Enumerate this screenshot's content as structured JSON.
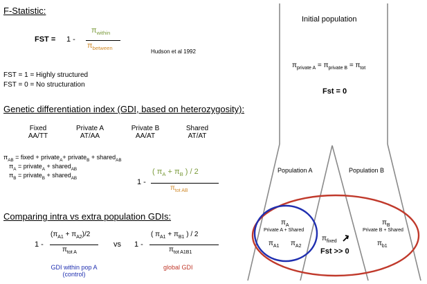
{
  "fstat": {
    "heading": "F-Statistic:",
    "fst_label": "FST =",
    "one_minus": "1 -",
    "pi": "π",
    "within": "within",
    "between": "between",
    "citation": "Hudson et al 1992",
    "line1": "FST = 1 = Highly structured",
    "line2": "FST = 0 = No structuration"
  },
  "gdi": {
    "heading": "Genetic differentiation index (GDI, based on heterozygosity):",
    "columns": [
      {
        "name": "Fixed",
        "genotype": "AA/TT"
      },
      {
        "name": "Private A",
        "genotype": "AT/AA"
      },
      {
        "name": "Private B",
        "genotype": "AA/AT"
      },
      {
        "name": "Shared",
        "genotype": "AT/AT"
      }
    ],
    "eq_ab": "= fixed + private",
    "eq_a": "= private",
    "eq_b": "= private",
    "plus_private": "+ private",
    "plus_shared": "+ shared",
    "sub_ab": "AB",
    "sub_a": "A",
    "sub_b": "B",
    "one_minus": "1 -",
    "numerator_open": "( π",
    "plus": "+  π",
    "close_half": ") / 2",
    "tot": "tot AB"
  },
  "compare": {
    "heading": "Comparing intra vs extra population GDIs:",
    "vs": "vs",
    "one_minus": "1 -",
    "left_num": "(π",
    "left_plus": "+ π",
    "left_close": ")/2",
    "left_den": "tot A",
    "right_num": "( π",
    "right_plus": "+  π",
    "right_close": ") / 2",
    "right_den": "tot A1B1",
    "sub_a1": "A1",
    "sub_a2": "A2",
    "sub_b1": "B1",
    "label_left_1": "GDI within pop A",
    "label_left_2": "(control)",
    "label_right": "global GDI"
  },
  "diagram": {
    "initial": "Initial population",
    "private_a": "private A",
    "private_b": "private B",
    "tot": "tot",
    "fst0": "Fst = 0",
    "pop_a": "Population A",
    "pop_b": "Population B",
    "pia": "π",
    "sub_a": "A",
    "sub_b": "B",
    "shared_a": "Private A + Shared",
    "shared_b": "Private B + Shared",
    "sub_a1": "A1",
    "sub_a2": "A2",
    "sub_b1": "b1",
    "fixed": "fixed",
    "fst_big": "Fst >> 0"
  },
  "colors": {
    "green": "#7a9a3a",
    "orange": "#d08a2a",
    "blue": "#1f2fb0",
    "red": "#c0392b",
    "tree": "#888888"
  }
}
